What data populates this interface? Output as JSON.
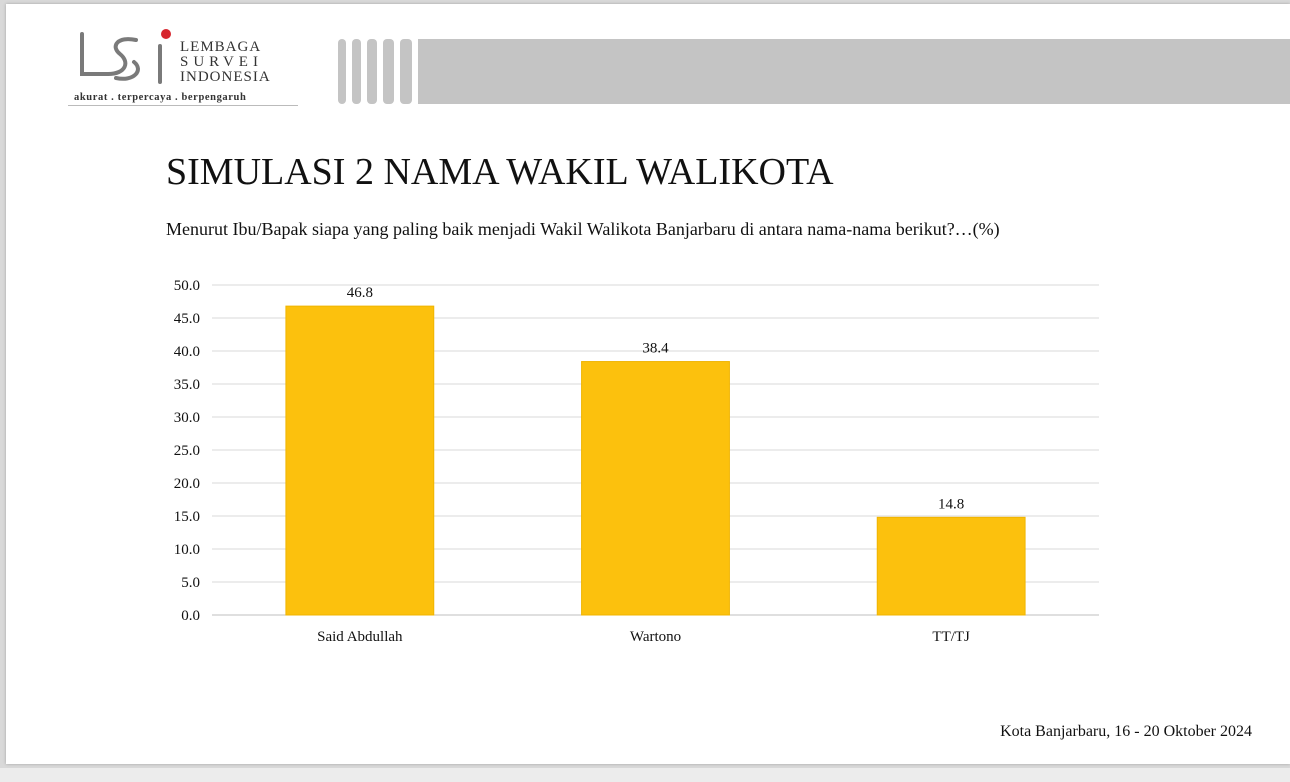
{
  "logo": {
    "line1": "LEMBAGA",
    "line2": "SURVEI",
    "line3": "INDONESIA",
    "tagline": "akurat . terpercaya . berpengaruh",
    "mark_text": "LSI",
    "accent_color": "#d7262e"
  },
  "slide": {
    "title": "SIMULASI 2 NAMA WAKIL WALIKOTA",
    "question": "Menurut Ibu/Bapak siapa yang paling baik menjadi Wakil Walikota Banjarbaru di antara nama-nama berikut?…(%)",
    "footer": "Kota Banjarbaru, 16 - 20 Oktober 2024"
  },
  "chart_data": {
    "type": "bar",
    "categories": [
      "Said Abdullah",
      "Wartono",
      "TT/TJ"
    ],
    "values": [
      46.8,
      38.4,
      14.8
    ],
    "value_labels": [
      "46.8",
      "38.4",
      "14.8"
    ],
    "ylim": [
      0,
      50
    ],
    "yticks": [
      "0.0",
      "5.0",
      "10.0",
      "15.0",
      "20.0",
      "25.0",
      "30.0",
      "35.0",
      "40.0",
      "45.0",
      "50.0"
    ],
    "grid": true,
    "bar_color": "#fcc10d",
    "title": "",
    "xlabel": "",
    "ylabel": ""
  }
}
